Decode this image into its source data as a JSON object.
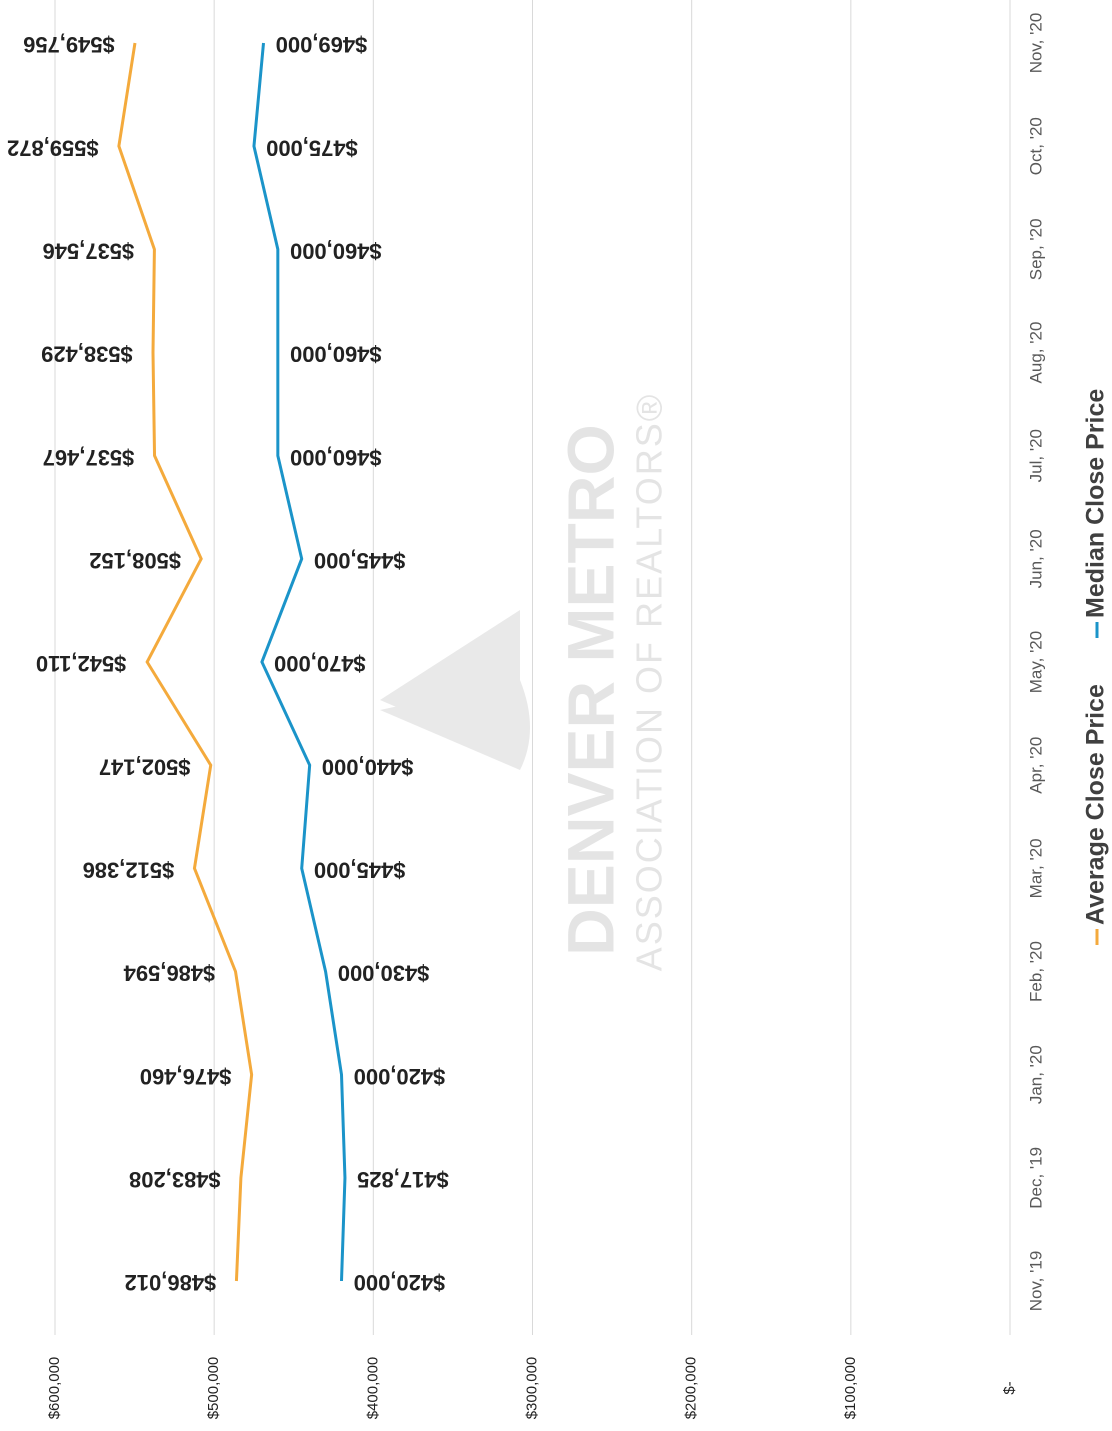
{
  "chart_data": {
    "type": "line",
    "categories": [
      "Nov, '19",
      "Dec, '19",
      "Jan, '20",
      "Feb, '20",
      "Mar, '20",
      "Apr, '20",
      "May, '20",
      "Jun, '20",
      "Jul, '20",
      "Aug, '20",
      "Sep, '20",
      "Oct, '20",
      "Nov, '20"
    ],
    "series": [
      {
        "name": "Average Close Price",
        "color": "#f4aa3c",
        "values": [
          486012,
          483208,
          476460,
          486594,
          512386,
          502147,
          542110,
          508152,
          537467,
          538429,
          537546,
          559872,
          549756
        ],
        "value_labels": [
          "$486,012",
          "$483,208",
          "$476,460",
          "$486,594",
          "$512,386",
          "$502,147",
          "$542,110",
          "$508,152",
          "$537,467",
          "$538,429",
          "$537,546",
          "$559,872",
          "$549,756"
        ]
      },
      {
        "name": "Median Close Price",
        "color": "#1b94c9",
        "values": [
          420000,
          417825,
          420000,
          430000,
          445000,
          440000,
          470000,
          445000,
          460000,
          460000,
          460000,
          475000,
          469000
        ],
        "value_labels": [
          "$420,000",
          "$417,825",
          "$420,000",
          "$430,000",
          "$445,000",
          "$440,000",
          "$470,000",
          "$445,000",
          "$460,000",
          "$460,000",
          "$460,000",
          "$475,000",
          "$469,000"
        ]
      }
    ],
    "ylim": [
      0,
      600000
    ],
    "yticks": [
      {
        "value": 0,
        "label": "$-"
      },
      {
        "value": 100000,
        "label": "$100,000"
      },
      {
        "value": 200000,
        "label": "$200,000"
      },
      {
        "value": 300000,
        "label": "$300,000"
      },
      {
        "value": 400000,
        "label": "$400,000"
      },
      {
        "value": 500000,
        "label": "$500,000"
      },
      {
        "value": 600000,
        "label": "$600,000"
      }
    ],
    "grid": true,
    "legend": "bottom",
    "watermark": {
      "title": "DENVER METRO",
      "subtitle": "ASSOCIATION OF REALTORS®"
    }
  }
}
